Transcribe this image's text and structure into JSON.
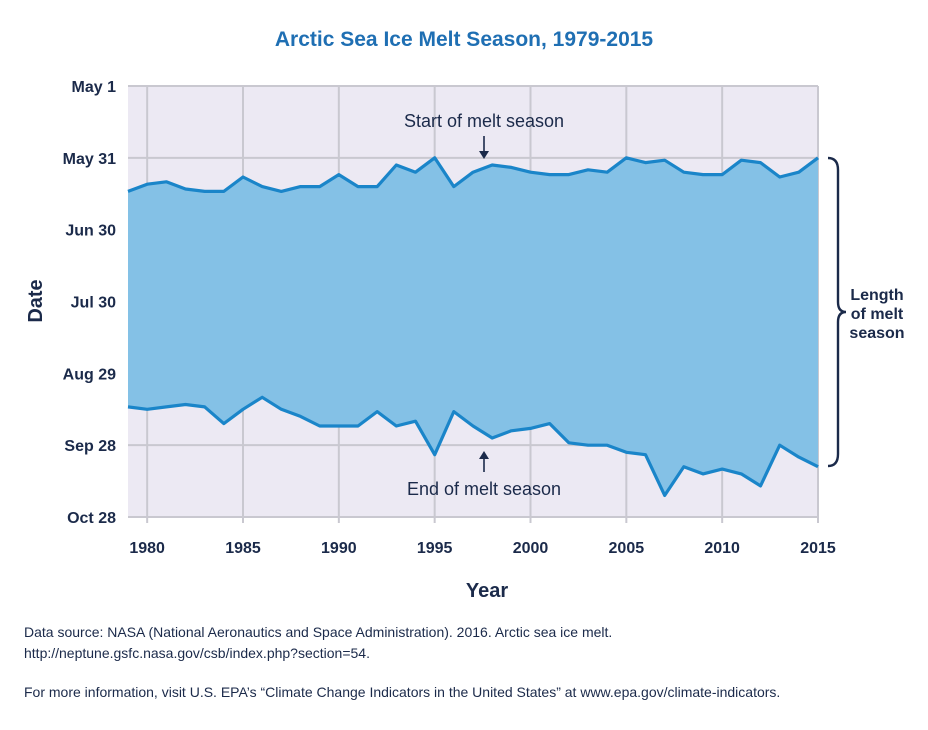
{
  "chart_data": {
    "type": "area",
    "title": "Arctic Sea Ice Melt Season, 1979-2015",
    "xlabel": "Year",
    "ylabel": "Date",
    "xlim": [
      1979,
      2015
    ],
    "x_ticks": [
      1980,
      1985,
      1990,
      1995,
      2000,
      2005,
      2010,
      2015
    ],
    "ylim": [
      "May 1",
      "Oct 28"
    ],
    "y_ticks": [
      "May 1",
      "May 31",
      "Jun 30",
      "Jul 30",
      "Aug 29",
      "Sep 28",
      "Oct 28"
    ],
    "y_inverted": true,
    "grid": true,
    "x": [
      1979,
      1980,
      1981,
      1982,
      1983,
      1984,
      1985,
      1986,
      1987,
      1988,
      1989,
      1990,
      1991,
      1992,
      1993,
      1994,
      1995,
      1996,
      1997,
      1998,
      1999,
      2000,
      2001,
      2002,
      2003,
      2004,
      2005,
      2006,
      2007,
      2008,
      2009,
      2010,
      2011,
      2012,
      2013,
      2014,
      2015
    ],
    "series": [
      {
        "name": "Start of melt season",
        "values": [
          "Jun 14",
          "Jun 11",
          "Jun 10",
          "Jun 13",
          "Jun 14",
          "Jun 14",
          "Jun 8",
          "Jun 12",
          "Jun 14",
          "Jun 12",
          "Jun 12",
          "Jun 7",
          "Jun 12",
          "Jun 12",
          "Jun 3",
          "Jun 6",
          "May 31",
          "Jun 12",
          "Jun 6",
          "Jun 3",
          "Jun 4",
          "Jun 6",
          "Jun 7",
          "Jun 7",
          "Jun 5",
          "Jun 6",
          "May 31",
          "Jun 2",
          "Jun 1",
          "Jun 6",
          "Jun 7",
          "Jun 7",
          "Jun 1",
          "Jun 2",
          "Jun 8",
          "Jun 6",
          "May 31"
        ]
      },
      {
        "name": "End of melt season",
        "values": [
          "Sep 12",
          "Sep 13",
          "Sep 12",
          "Sep 11",
          "Sep 12",
          "Sep 19",
          "Sep 13",
          "Sep 8",
          "Sep 13",
          "Sep 16",
          "Sep 20",
          "Sep 20",
          "Sep 20",
          "Sep 14",
          "Sep 20",
          "Sep 18",
          "Oct 2",
          "Sep 14",
          "Sep 20",
          "Sep 25",
          "Sep 22",
          "Sep 21",
          "Sep 19",
          "Sep 27",
          "Sep 28",
          "Sep 28",
          "Oct 1",
          "Oct 2",
          "Oct 19",
          "Oct 7",
          "Oct 10",
          "Oct 8",
          "Oct 10",
          "Oct 15",
          "Sep 28",
          "Oct 3",
          "Oct 7"
        ]
      }
    ],
    "annotations": {
      "start": "Start of melt season",
      "end": "End of melt season",
      "bracket": [
        "Length",
        "of melt",
        "season"
      ]
    }
  },
  "footer": {
    "source_line1": "Data source: NASA (National Aeronautics and Space Administration). 2016. Arctic sea ice melt.",
    "source_line2": "http://neptune.gsfc.nasa.gov/csb/index.php?section=54.",
    "info": "For more information, visit U.S. EPA’s “Climate Change Indicators in the United States” at www.epa.gov/climate-indicators."
  },
  "colors": {
    "plot_bg": "#ece9f3",
    "fill": "#84c1e6",
    "line": "#1a85c9",
    "grid": "#c9c8d0",
    "text": "#1b2a4a",
    "title": "#1f6fb3"
  }
}
